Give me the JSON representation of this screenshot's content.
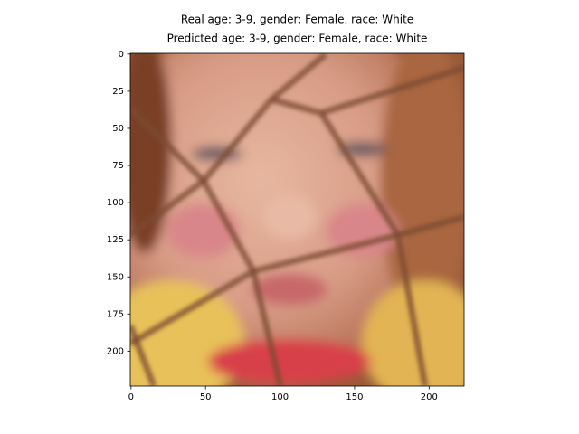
{
  "chart_data": {
    "type": "image",
    "title": [
      "Real age: 3-9, gender: Female, race: White",
      "Predicted age: 3-9, gender: Female, race: White"
    ],
    "xlim": [
      -0.5,
      223.5
    ],
    "ylim": [
      223.5,
      -0.5
    ],
    "xticks": [
      0,
      50,
      100,
      150,
      200
    ],
    "yticks": [
      0,
      25,
      50,
      75,
      100,
      125,
      150,
      175,
      200
    ]
  }
}
